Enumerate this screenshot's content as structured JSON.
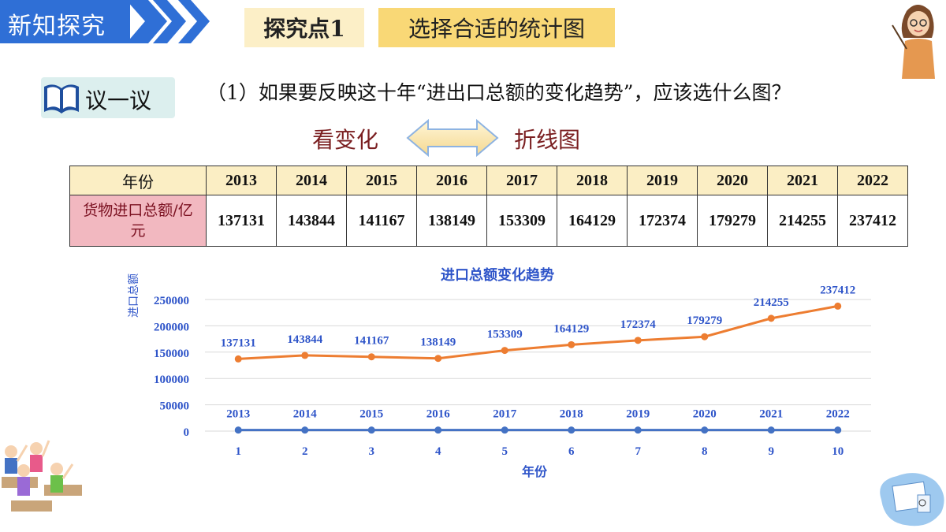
{
  "header": {
    "section": "新知探究",
    "point_label": "探究点1",
    "point_title": "选择合适的统计图"
  },
  "discuss": {
    "label": "议一议",
    "question": "（1）如果要反映这十年“进出口总额的变化趋势”，应该选什么图？",
    "left_word": "看变化",
    "right_word": "折线图"
  },
  "table": {
    "row_headers": [
      "年份",
      "货物进口总额/亿元"
    ],
    "years": [
      "2013",
      "2014",
      "2015",
      "2016",
      "2017",
      "2018",
      "2019",
      "2020",
      "2021",
      "2022"
    ],
    "values": [
      "137131",
      "143844",
      "141167",
      "138149",
      "153309",
      "164129",
      "172374",
      "179279",
      "214255",
      "237412"
    ]
  },
  "chart_data": {
    "type": "line",
    "title": "进口总额变化趋势",
    "ylabel": "进口总额",
    "xlabel": "年份",
    "x": [
      1,
      2,
      3,
      4,
      5,
      6,
      7,
      8,
      9,
      10
    ],
    "ylim": [
      0,
      250000
    ],
    "yticks": [
      0,
      50000,
      100000,
      150000,
      200000,
      250000
    ],
    "grid": true,
    "series": [
      {
        "values": [
          137131,
          143844,
          141167,
          138149,
          153309,
          164129,
          172374,
          179279,
          214255,
          237412
        ],
        "labels": [
          "137131",
          "143844",
          "141167",
          "138149",
          "153309",
          "164129",
          "172374",
          "179279",
          "214255",
          "237412"
        ],
        "color": "#ed7d31"
      },
      {
        "values": [
          2013,
          2014,
          2015,
          2016,
          2017,
          2018,
          2019,
          2020,
          2021,
          2022
        ],
        "labels": [
          "2013",
          "2014",
          "2015",
          "2016",
          "2017",
          "2018",
          "2019",
          "2020",
          "2021",
          "2022"
        ],
        "color": "#4472c4"
      }
    ],
    "label_color": "#2f55c9"
  },
  "colors": {
    "banner": "#2f6fd6",
    "accent_text": "#7a1e20"
  }
}
